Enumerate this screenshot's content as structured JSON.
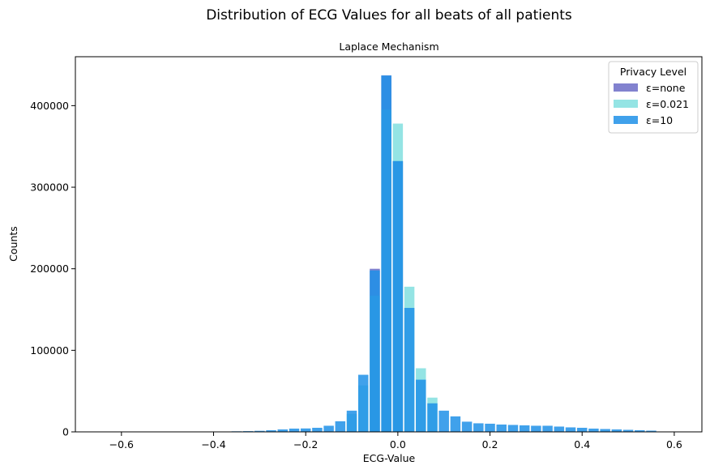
{
  "chart_data": {
    "type": "bar",
    "suptitle": "Distribution of ECG Values for all beats of all patients",
    "title": "Laplace Mechanism",
    "xlabel": "ECG-Value",
    "ylabel": "Counts",
    "xlim": [
      -0.7,
      0.66
    ],
    "ylim": [
      0,
      460000
    ],
    "xticks": [
      -0.6,
      -0.4,
      -0.2,
      0.0,
      0.2,
      0.4,
      0.6
    ],
    "xtick_labels": [
      "−0.6",
      "−0.4",
      "−0.2",
      "0.0",
      "0.2",
      "0.4",
      "0.6"
    ],
    "yticks": [
      0,
      100000,
      200000,
      300000,
      400000
    ],
    "ytick_labels": [
      "0",
      "100000",
      "200000",
      "300000",
      "400000"
    ],
    "legend": {
      "title": "Privacy Level",
      "placement": "top-right",
      "entries": [
        "ε=none",
        "ε=0.021",
        "ε=10"
      ]
    },
    "bin_width": 0.025,
    "series": [
      {
        "name": "ε=none",
        "color": "#3f3fb5",
        "alpha": 0.65,
        "x": [
          -0.05,
          -0.025,
          0.0
        ],
        "values": [
          200000,
          437000,
          332000
        ]
      },
      {
        "name": "ε=0.021",
        "color": "#5ad5d5",
        "alpha": 0.65,
        "x": [
          -0.1,
          -0.075,
          -0.05,
          -0.025,
          0.0,
          0.025,
          0.05,
          0.075
        ],
        "values": [
          22000,
          57000,
          167000,
          395000,
          378000,
          178000,
          78000,
          42000
        ]
      },
      {
        "name": "ε=10",
        "color": "#1e90e8",
        "alpha": 0.85,
        "x": [
          -0.375,
          -0.35,
          -0.325,
          -0.3,
          -0.275,
          -0.25,
          -0.225,
          -0.2,
          -0.175,
          -0.15,
          -0.125,
          -0.1,
          -0.075,
          -0.05,
          -0.025,
          0.0,
          0.025,
          0.05,
          0.075,
          0.1,
          0.125,
          0.15,
          0.175,
          0.2,
          0.225,
          0.25,
          0.275,
          0.3,
          0.325,
          0.35,
          0.375,
          0.4,
          0.425,
          0.45,
          0.475,
          0.5,
          0.525,
          0.55
        ],
        "values": [
          300,
          700,
          900,
          1300,
          2000,
          3000,
          4000,
          4200,
          5000,
          7500,
          13000,
          26000,
          70000,
          198000,
          437000,
          332000,
          152000,
          64000,
          35000,
          26000,
          19000,
          12500,
          10500,
          10000,
          9000,
          8500,
          8000,
          7500,
          7500,
          6500,
          5500,
          5000,
          4000,
          3500,
          3000,
          2500,
          2000,
          1500
        ]
      }
    ]
  }
}
